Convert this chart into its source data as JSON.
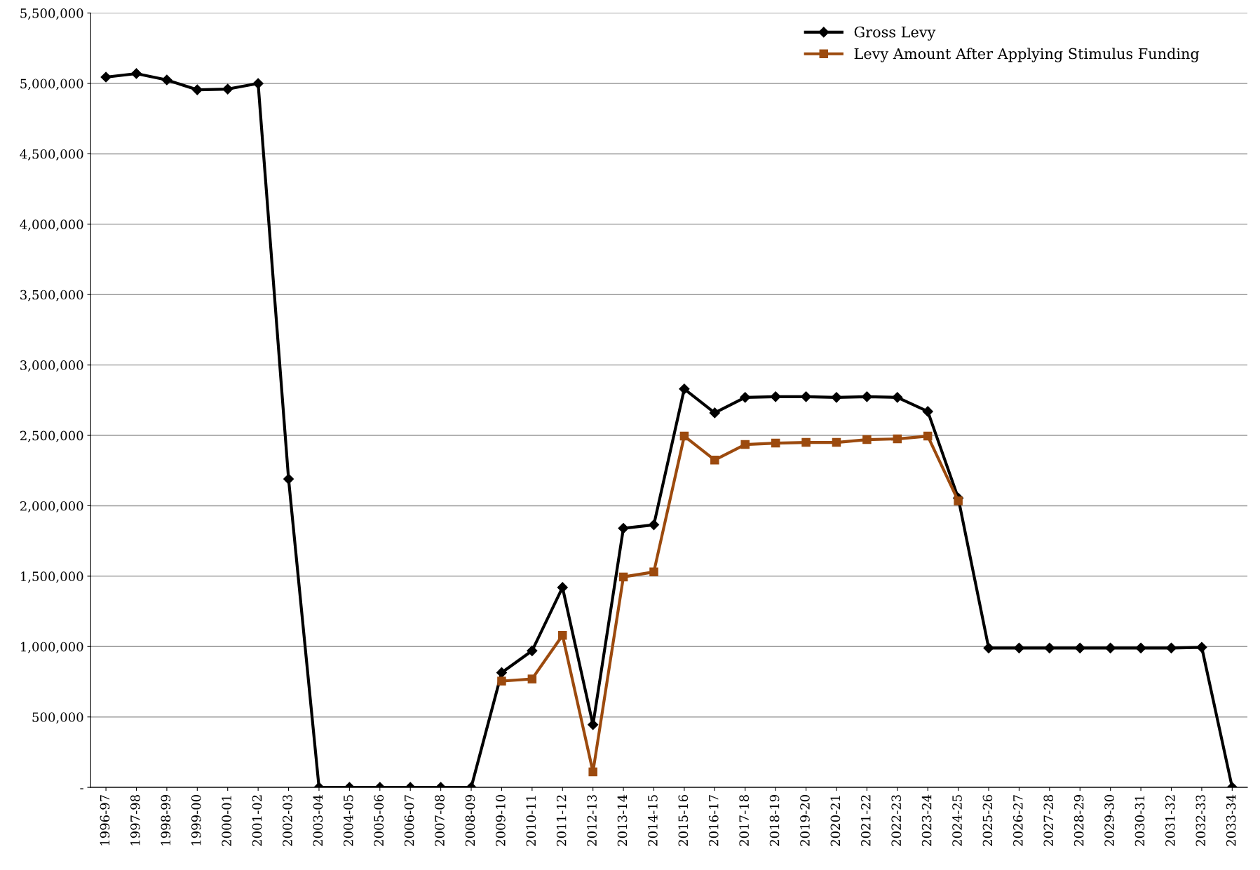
{
  "chart_data": {
    "type": "line",
    "categories": [
      "1996-97",
      "1997-98",
      "1998-99",
      "1999-00",
      "2000-01",
      "2001-02",
      "2002-03",
      "2003-04",
      "2004-05",
      "2005-06",
      "2006-07",
      "2007-08",
      "2008-09",
      "2009-10",
      "2010-11",
      "2011-12",
      "2012-13",
      "2013-14",
      "2014-15",
      "2015-16",
      "2016-17",
      "2017-18",
      "2018-19",
      "2019-20",
      "2020-21",
      "2021-22",
      "2022-23",
      "2023-24",
      "2024-25",
      "2025-26",
      "2026-27",
      "2027-28",
      "2028-29",
      "2029-30",
      "2030-31",
      "2031-32",
      "2032-33",
      "2033-34"
    ],
    "series": [
      {
        "name": "Gross Levy",
        "color": "#000000",
        "marker": "diamond",
        "values": [
          5045000,
          5070000,
          5025000,
          4955000,
          4960000,
          5000000,
          2190000,
          0,
          0,
          0,
          0,
          0,
          0,
          815000,
          970000,
          1420000,
          445000,
          1840000,
          1865000,
          2830000,
          2660000,
          2770000,
          2775000,
          2775000,
          2770000,
          2775000,
          2770000,
          2670000,
          2055000,
          990000,
          990000,
          990000,
          990000,
          990000,
          990000,
          990000,
          995000,
          0
        ]
      },
      {
        "name": "Levy Amount After Applying Stimulus Funding",
        "color": "#9c4a0e",
        "marker": "square",
        "values": [
          null,
          null,
          null,
          null,
          null,
          null,
          null,
          null,
          null,
          null,
          null,
          null,
          null,
          755000,
          770000,
          1080000,
          110000,
          1495000,
          1530000,
          2495000,
          2325000,
          2435000,
          2445000,
          2450000,
          2450000,
          2470000,
          2475000,
          2495000,
          2035000,
          null,
          null,
          null,
          null,
          null,
          null,
          null,
          null,
          null
        ]
      }
    ],
    "ylim": [
      0,
      5500000
    ],
    "yticks": [
      {
        "value": 0,
        "label": "-"
      },
      {
        "value": 500000,
        "label": "500,000"
      },
      {
        "value": 1000000,
        "label": "1,000,000"
      },
      {
        "value": 1500000,
        "label": "1,500,000"
      },
      {
        "value": 2000000,
        "label": "2,000,000"
      },
      {
        "value": 2500000,
        "label": "2,500,000"
      },
      {
        "value": 3000000,
        "label": "3,000,000"
      },
      {
        "value": 3500000,
        "label": "3,500,000"
      },
      {
        "value": 4000000,
        "label": "4,000,000"
      },
      {
        "value": 4500000,
        "label": "4,500,000"
      },
      {
        "value": 5000000,
        "label": "5,000,000"
      },
      {
        "value": 5500000,
        "label": "5,500,000"
      }
    ],
    "grid": "y",
    "legend": "top right",
    "line_style": "solid"
  }
}
